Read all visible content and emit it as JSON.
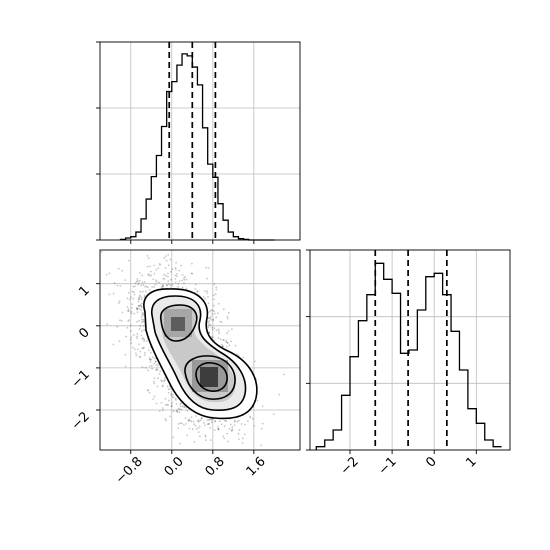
{
  "chart_data": [
    {
      "type": "histogram",
      "panel": "top-left",
      "variable": "x",
      "bins": [
        -1.0,
        -0.9,
        -0.8,
        -0.7,
        -0.6,
        -0.5,
        -0.4,
        -0.3,
        -0.2,
        -0.1,
        0.0,
        0.1,
        0.2,
        0.3,
        0.4,
        0.5,
        0.6,
        0.7,
        0.8,
        0.9,
        1.0,
        1.1,
        1.2,
        1.3,
        1.4,
        1.5,
        1.6,
        1.7,
        1.8,
        1.9,
        2.0
      ],
      "counts": [
        1,
        3,
        5,
        12,
        32,
        62,
        96,
        128,
        172,
        225,
        240,
        265,
        282,
        279,
        262,
        235,
        170,
        115,
        95,
        55,
        30,
        12,
        5,
        2,
        1,
        0,
        0,
        0,
        0,
        0
      ],
      "quantiles": [
        -0.05,
        0.4,
        0.85
      ],
      "xlim": [
        -1.4,
        2.5
      ],
      "ylim": [
        0,
        300
      ],
      "grid": true,
      "xtick_labels_shown": false,
      "ytick_labels_shown": false
    },
    {
      "type": "histogram",
      "panel": "bottom-right",
      "variable": "y",
      "bins": [
        -2.8,
        -2.6,
        -2.4,
        -2.2,
        -2.0,
        -1.8,
        -1.6,
        -1.4,
        -1.2,
        -1.0,
        -0.8,
        -0.6,
        -0.4,
        -0.2,
        0.0,
        0.2,
        0.4,
        0.6,
        0.8,
        1.0,
        1.2,
        1.4,
        1.6
      ],
      "counts": [
        5,
        15,
        30,
        82,
        140,
        194,
        233,
        280,
        256,
        235,
        145,
        150,
        210,
        260,
        265,
        233,
        178,
        120,
        62,
        40,
        15,
        5
      ],
      "quantiles": [
        -1.4,
        -0.62,
        0.3
      ],
      "xlim": [
        -2.95,
        1.8
      ],
      "ylim": [
        0,
        300
      ],
      "grid": true,
      "xticks": [
        -2,
        -1,
        0,
        1
      ],
      "ytick_labels_shown": false
    },
    {
      "type": "scatter_contour",
      "panel": "bottom-left",
      "x_variable": "x",
      "y_variable": "y",
      "xlim": [
        -1.4,
        2.5
      ],
      "ylim": [
        -2.95,
        1.8
      ],
      "xticks": [
        -0.8,
        0.0,
        0.8,
        1.6
      ],
      "yticks": [
        1,
        0,
        -1,
        -2
      ],
      "grid": true,
      "modes": [
        {
          "x": 0.05,
          "y": 0.1
        },
        {
          "x": 0.6,
          "y": -1.3
        }
      ],
      "n_samples": 5000
    }
  ],
  "labels": {
    "x_ticks_bottom_left": [
      "−0.8",
      "0.0",
      "0.8",
      "1.6"
    ],
    "y_ticks_bottom_left": [
      "1",
      "0",
      "−1",
      "−2"
    ],
    "x_ticks_bottom_right": [
      "−2",
      "−1",
      "0",
      "1"
    ]
  }
}
